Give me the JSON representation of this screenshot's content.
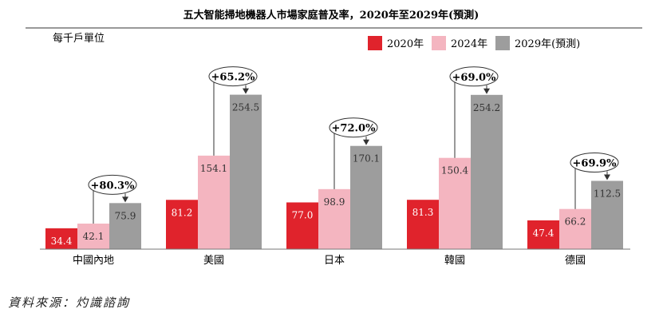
{
  "chart_data": {
    "type": "bar",
    "title": "五大智能掃地機器人市場家庭普及率，2020年至2029年(預測)",
    "unit_label": "每千戶單位",
    "categories": [
      "中國內地",
      "美國",
      "日本",
      "韓國",
      "德國"
    ],
    "series": [
      {
        "name": "2020年",
        "values": [
          34.4,
          81.2,
          77.0,
          81.3,
          47.4
        ],
        "color": "#e0232c",
        "value_labels": [
          "34.4",
          "81.2",
          "77.0",
          "81.3",
          "47.4"
        ]
      },
      {
        "name": "2024年",
        "values": [
          42.1,
          154.1,
          98.9,
          150.4,
          66.2
        ],
        "color": "#f4b5c0",
        "value_labels": [
          "42.1",
          "154.1",
          "98.9",
          "150.4",
          "66.2"
        ]
      },
      {
        "name": "2029年(預測)",
        "values": [
          75.9,
          254.5,
          170.1,
          254.2,
          112.5
        ],
        "color": "#9d9d9d",
        "value_labels": [
          "75.9",
          "254.5",
          "170.1",
          "254.2",
          "112.5"
        ]
      }
    ],
    "growth_annotations": [
      "+80.3%",
      "+65.2%",
      "+72.0%",
      "+69.0%",
      "+69.9%"
    ],
    "ylim": [
      0,
      300
    ],
    "legend_position": "top-right"
  },
  "source_note": "資料來源：灼識諮詢"
}
